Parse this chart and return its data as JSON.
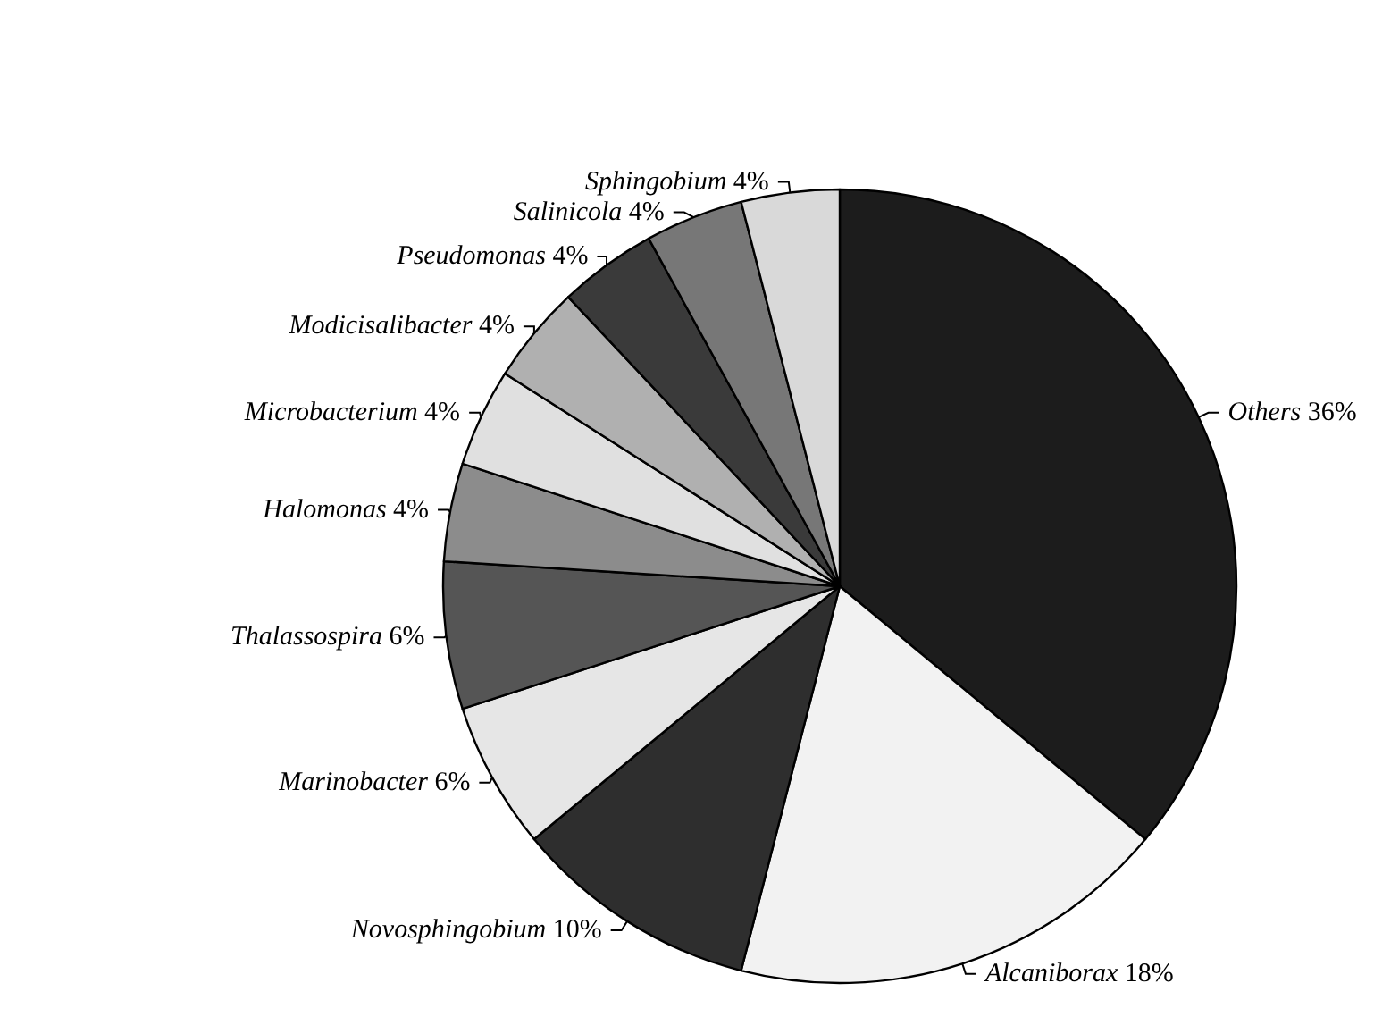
{
  "chart_data": {
    "type": "pie",
    "categories": [
      "Others",
      "Alcaniborax",
      "Novosphingobium",
      "Marinobacter",
      "Thalassospira",
      "Halomonas",
      "Microbacterium",
      "Modicisalibacter",
      "Pseudomonas",
      "Salinicola",
      "Sphingobium"
    ],
    "values": [
      36,
      18,
      10,
      6,
      6,
      4,
      4,
      4,
      4,
      4,
      4
    ],
    "value_labels": [
      "36%",
      "18%",
      "10%",
      "6%",
      "6%",
      "4%",
      "4%",
      "4%",
      "4%",
      "4%",
      "4%"
    ],
    "colors": [
      "#1c1c1c",
      "#f2f2f2",
      "#2e2e2e",
      "#e6e6e6",
      "#555555",
      "#8c8c8c",
      "#e0e0e0",
      "#b0b0b0",
      "#3a3a3a",
      "#777777",
      "#d9d9d9"
    ]
  }
}
